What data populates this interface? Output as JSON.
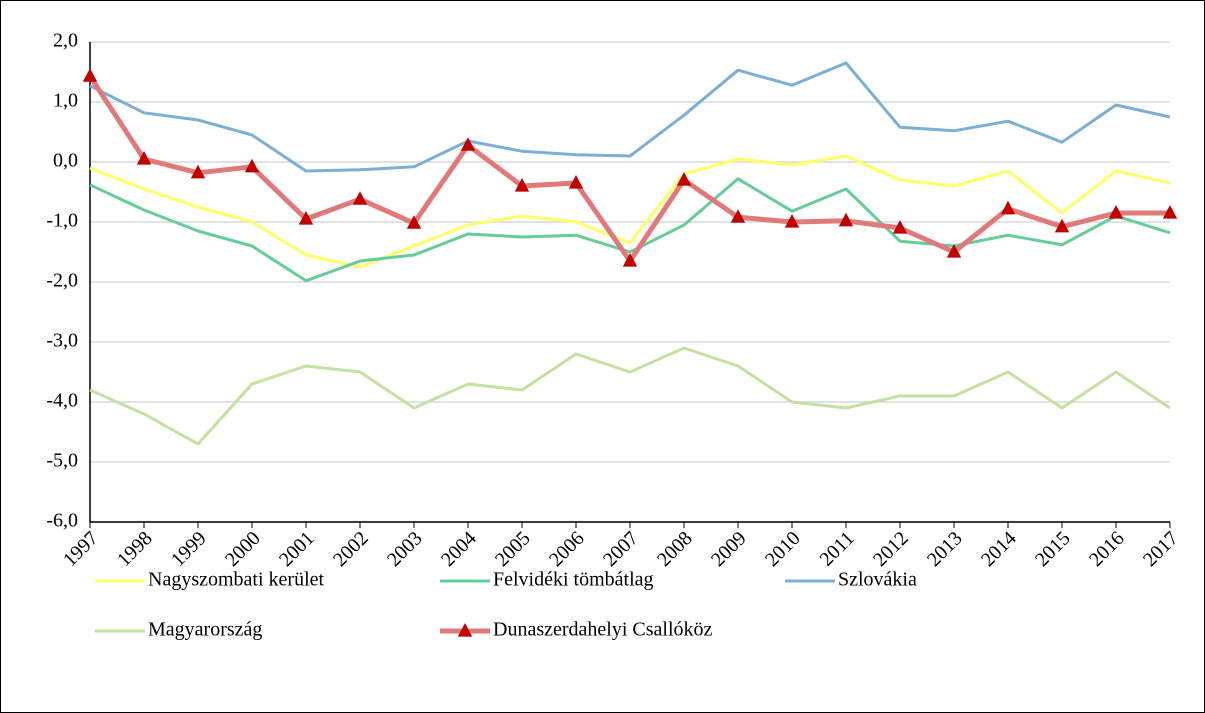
{
  "chart_data": {
    "type": "line",
    "categories": [
      "1997",
      "1998",
      "1999",
      "2000",
      "2001",
      "2002",
      "2003",
      "2004",
      "2005",
      "2006",
      "2007",
      "2008",
      "2009",
      "2010",
      "2011",
      "2012",
      "2013",
      "2014",
      "2015",
      "2016",
      "2017"
    ],
    "series": [
      {
        "name": "Nagyszombati kerület",
        "color": "#ffff66",
        "line_width": 3,
        "values": [
          -0.1,
          -0.45,
          -0.75,
          -1.0,
          -1.55,
          -1.75,
          -1.4,
          -1.05,
          -0.9,
          -1.0,
          -1.35,
          -0.2,
          0.05,
          -0.05,
          0.1,
          -0.3,
          -0.4,
          -0.15,
          -0.85,
          -0.15,
          -0.35
        ]
      },
      {
        "name": "Felvidéki tömbátlag",
        "color": "#66cc99",
        "line_width": 3,
        "values": [
          -0.38,
          -0.8,
          -1.15,
          -1.4,
          -1.98,
          -1.65,
          -1.55,
          -1.2,
          -1.25,
          -1.22,
          -1.5,
          -1.05,
          -0.28,
          -0.82,
          -0.45,
          -1.32,
          -1.4,
          -1.22,
          -1.38,
          -0.9,
          -1.18
        ]
      },
      {
        "name": "Szlovákia",
        "color": "#7bafd4",
        "line_width": 3,
        "values": [
          1.27,
          0.82,
          0.7,
          0.45,
          -0.15,
          -0.13,
          -0.08,
          0.35,
          0.18,
          0.12,
          0.1,
          0.78,
          1.53,
          1.28,
          1.65,
          0.58,
          0.52,
          0.68,
          0.33,
          0.95,
          0.75
        ]
      },
      {
        "name": "Magyarország",
        "color": "#c5e0a0",
        "line_width": 3,
        "values": [
          -3.8,
          -4.2,
          -4.7,
          -3.7,
          -3.4,
          -3.5,
          -4.1,
          -3.7,
          -3.8,
          -3.2,
          -3.5,
          -3.1,
          -3.4,
          -4.0,
          -4.1,
          -3.9,
          -3.9,
          -3.5,
          -4.1,
          -3.5,
          -4.1
        ]
      },
      {
        "name": "Dunaszerdahelyi Csallóköz",
        "color": "#e07a7a",
        "line_width": 5,
        "marker": "triangle",
        "marker_color": "#c00000",
        "values": [
          1.43,
          0.05,
          -0.18,
          -0.08,
          -0.95,
          -0.62,
          -1.02,
          0.28,
          -0.4,
          -0.35,
          -1.65,
          -0.3,
          -0.92,
          -1.0,
          -0.98,
          -1.1,
          -1.5,
          -0.78,
          -1.08,
          -0.85,
          -0.85
        ]
      }
    ],
    "ylim": [
      -6,
      2
    ],
    "yticks": [
      {
        "value": -6,
        "label": "-6,0"
      },
      {
        "value": -5,
        "label": "-5,0"
      },
      {
        "value": -4,
        "label": "-4,0"
      },
      {
        "value": -3,
        "label": "-3,0"
      },
      {
        "value": -2,
        "label": "-2,0"
      },
      {
        "value": -1,
        "label": "-1,0"
      },
      {
        "value": 0,
        "label": "0,0"
      },
      {
        "value": 1,
        "label": "1,0"
      },
      {
        "value": 2,
        "label": "2,0"
      }
    ],
    "grid": true,
    "legend": "bottom"
  }
}
